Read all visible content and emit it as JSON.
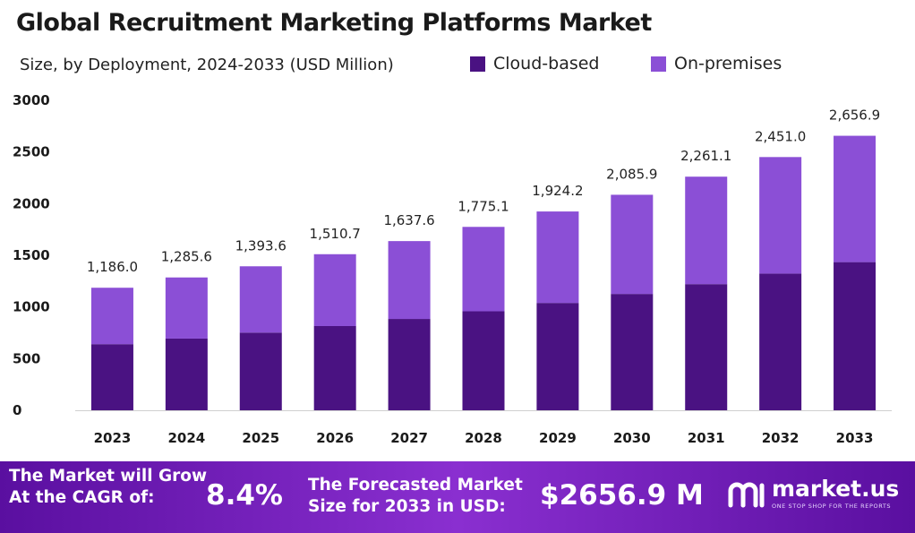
{
  "header": {
    "title": "Global Recruitment Marketing Platforms Market",
    "subtitle": "Size, by Deployment, 2024-2033 (USD Million)"
  },
  "legend": [
    {
      "label": "Cloud-based",
      "color": "#4a1282"
    },
    {
      "label": "On-premises",
      "color": "#8b4fd6"
    }
  ],
  "chart_data": {
    "type": "bar",
    "stacked": true,
    "categories": [
      "2023",
      "2024",
      "2025",
      "2026",
      "2027",
      "2028",
      "2029",
      "2030",
      "2031",
      "2032",
      "2033"
    ],
    "series": [
      {
        "name": "Cloud-based",
        "color": "#4a1282",
        "values": [
          640,
          694,
          752,
          815,
          884,
          958,
          1039,
          1126,
          1221,
          1323,
          1434
        ]
      },
      {
        "name": "On-premises",
        "color": "#8b4fd6",
        "values": [
          546,
          591.6,
          641.6,
          695.7,
          753.6,
          817.1,
          885.2,
          959.9,
          1040.1,
          1128,
          1222.9
        ]
      }
    ],
    "totals": [
      "1,186.0",
      "1,285.6",
      "1,393.6",
      "1,510.7",
      "1,637.6",
      "1,775.1",
      "1,924.2",
      "2,085.9",
      "2,261.1",
      "2,451.0",
      "2,656.9"
    ],
    "total_values": [
      1186.0,
      1285.6,
      1393.6,
      1510.7,
      1637.6,
      1775.1,
      1924.2,
      2085.9,
      2261.1,
      2451.0,
      2656.9
    ],
    "yticks": [
      "0",
      "500",
      "1000",
      "1500",
      "2000",
      "2500",
      "3000"
    ],
    "ylim": [
      0,
      3000
    ],
    "grid": false,
    "legend_position": "top-right"
  },
  "footer": {
    "cagr_label": "The Market will Grow\nAt the CAGR of:",
    "cagr_value": "8.4%",
    "forecast_label": "The Forecasted Market\nSize for 2033 in USD:",
    "forecast_value": "$2656.9 M",
    "brand_name": "market.us",
    "brand_tagline": "ONE STOP SHOP FOR THE REPORTS"
  }
}
